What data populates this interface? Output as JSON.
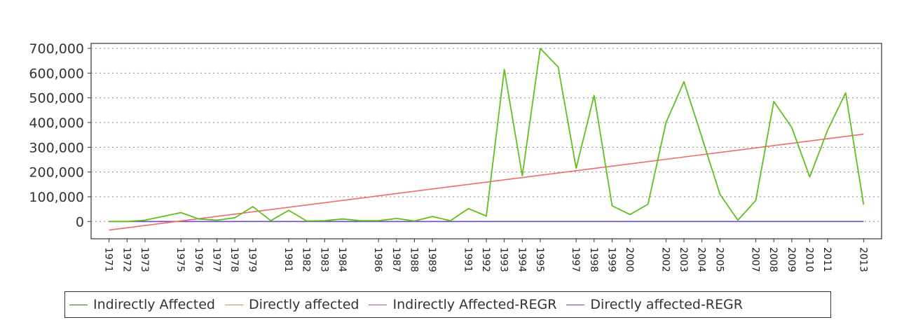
{
  "chart_data": {
    "type": "line",
    "title": "",
    "xlabel": "",
    "ylabel": "",
    "ylim": [
      -70000,
      720000
    ],
    "yticks": [
      0,
      100000,
      200000,
      300000,
      400000,
      500000,
      600000,
      700000
    ],
    "ytick_labels": [
      "0",
      "100,000",
      "200,000",
      "300,000",
      "400,000",
      "500,000",
      "600,000",
      "700,000"
    ],
    "xlim": [
      1970,
      2014
    ],
    "xtick_labels": [
      "1971",
      "1972",
      "1973",
      "1975",
      "1976",
      "1977",
      "1978",
      "1979",
      "1981",
      "1982",
      "1983",
      "1984",
      "1986",
      "1987",
      "1988",
      "1989",
      "1991",
      "1992",
      "1993",
      "1994",
      "1995",
      "1997",
      "1998",
      "1999",
      "2000",
      "2002",
      "2003",
      "2004",
      "2005",
      "2007",
      "2008",
      "2009",
      "2010",
      "2011",
      "2013"
    ],
    "grid": true,
    "legend_position": "bottom",
    "series": [
      {
        "name": "Indirectly Affected",
        "color": "#5fbf1a",
        "points": [
          [
            1971,
            0
          ],
          [
            1972,
            0
          ],
          [
            1973,
            5000
          ],
          [
            1975,
            36000
          ],
          [
            1976,
            10000
          ],
          [
            1977,
            5000
          ],
          [
            1978,
            15000
          ],
          [
            1979,
            60000
          ],
          [
            1980,
            3000
          ],
          [
            1981,
            45000
          ],
          [
            1982,
            2000
          ],
          [
            1983,
            3000
          ],
          [
            1984,
            10000
          ],
          [
            1985,
            3000
          ],
          [
            1986,
            3000
          ],
          [
            1987,
            12000
          ],
          [
            1988,
            2000
          ],
          [
            1989,
            20000
          ],
          [
            1990,
            3000
          ],
          [
            1991,
            52000
          ],
          [
            1992,
            22000
          ],
          [
            1993,
            615000
          ],
          [
            1994,
            185000
          ],
          [
            1995,
            700000
          ],
          [
            1996,
            625000
          ],
          [
            1997,
            215000
          ],
          [
            1998,
            510000
          ],
          [
            1999,
            63000
          ],
          [
            2000,
            28000
          ],
          [
            2001,
            70000
          ],
          [
            2002,
            400000
          ],
          [
            2003,
            565000
          ],
          [
            2004,
            340000
          ],
          [
            2005,
            110000
          ],
          [
            2006,
            5000
          ],
          [
            2007,
            85000
          ],
          [
            2008,
            485000
          ],
          [
            2009,
            380000
          ],
          [
            2010,
            180000
          ],
          [
            2011,
            370000
          ],
          [
            2012,
            520000
          ],
          [
            2013,
            68000
          ]
        ]
      },
      {
        "name": "Directly affected",
        "color": "#e08a3c",
        "points": [
          [
            1971,
            0
          ],
          [
            2013,
            0
          ]
        ]
      },
      {
        "name": "Indirectly Affected-REGR",
        "color": "#f06a6a",
        "points": [
          [
            1971,
            -35000
          ],
          [
            2013,
            353000
          ]
        ]
      },
      {
        "name": "Directly affected-REGR",
        "color": "#6a4fd6",
        "points": [
          [
            1971,
            0
          ],
          [
            2013,
            0
          ]
        ]
      }
    ]
  },
  "legend": {
    "items": [
      {
        "label": "Indirectly Affected",
        "color": "#3f7f1a"
      },
      {
        "label": "Directly affected",
        "color": "#e08a3c"
      },
      {
        "label": "Indirectly Affected-REGR",
        "color": "#b04fb0"
      },
      {
        "label": "Directly affected-REGR",
        "color": "#5a4fd6"
      }
    ]
  }
}
